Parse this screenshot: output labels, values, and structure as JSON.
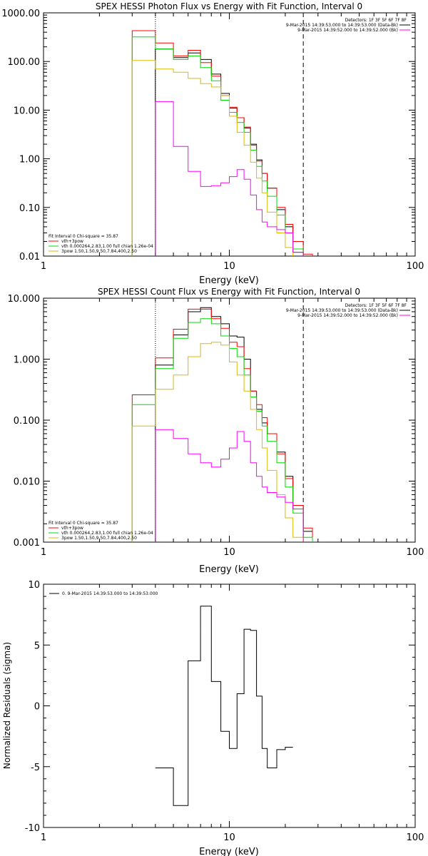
{
  "chart_data": [
    {
      "type": "line",
      "title": "SPEX HESSI Photon Flux vs Energy with Fit Function, Interval 0",
      "xlabel": "Energy (keV)",
      "ylabel": "",
      "xscale": "log",
      "yscale": "log",
      "xlim": [
        1,
        100
      ],
      "ylim": [
        0.01,
        1000
      ],
      "x_ticks": [
        "1",
        "10",
        "100"
      ],
      "y_ticks": [
        "1000.00",
        "100.00",
        "10.00",
        "1.00",
        "0.10",
        "0.01"
      ],
      "vlines": [
        {
          "x": 4.0,
          "style": "dotted"
        },
        {
          "x": 25.0,
          "style": "dashed"
        }
      ],
      "bin_edges": [
        3,
        4,
        5,
        6,
        7,
        8,
        9,
        10,
        11,
        12,
        13,
        14,
        15,
        16,
        18,
        20,
        22,
        25,
        28
      ],
      "series": [
        {
          "name": "",
          "color": "#000000",
          "values": [
            null,
            180,
            120,
            150,
            110,
            55,
            22,
            11,
            7,
            4.3,
            2.0,
            0.95,
            0.5,
            0.25,
            0.09,
            0.04,
            0.012,
            null
          ]
        },
        {
          "name": "",
          "color": "#ff0000",
          "values": [
            430,
            240,
            130,
            170,
            95,
            50,
            20,
            11.5,
            7,
            4.5,
            1.9,
            0.9,
            0.5,
            0.25,
            0.1,
            0.045,
            0.02,
            0.011
          ]
        },
        {
          "name": "",
          "color": "#00dd00",
          "values": [
            320,
            180,
            110,
            130,
            75,
            40,
            16,
            9,
            5.6,
            3.5,
            1.5,
            0.7,
            0.35,
            0.17,
            0.07,
            0.03,
            0.014,
            null
          ]
        },
        {
          "name": "",
          "color": "#ddbb00",
          "values": [
            105,
            70,
            60,
            45,
            35,
            30,
            20,
            7.5,
            3.5,
            1.9,
            0.85,
            0.4,
            0.2,
            0.08,
            0.03,
            0.015,
            null,
            null
          ]
        },
        {
          "name": "",
          "color": "#ff00ff",
          "values": [
            null,
            15,
            1.8,
            0.55,
            0.27,
            0.28,
            0.32,
            0.43,
            0.6,
            0.38,
            0.18,
            0.09,
            0.05,
            0.04,
            0.035,
            0.03,
            0.012,
            null
          ]
        }
      ],
      "legend_top_right": {
        "detectors": "Detectors: 1F 3F 5F 6F 7F 8F",
        "entries": [
          {
            "text": "9-Mar-2015 14:39:53.000 to 14:39:53.000 (Data-Bk)",
            "color": "#000000"
          },
          {
            "text": "9-Mar-2015 14:39:52.000 to 14:39:52.000 (Bk)",
            "color": "#ff00ff"
          }
        ]
      },
      "legend_bottom_left": {
        "header": "Fit Interval 0   Chi-square = 35.87",
        "entries": [
          {
            "text": "vth+3pow",
            "color": "#ff0000"
          },
          {
            "text": "vth 0.000264,2.83,1.00  full chian 1.26e-04",
            "color": "#00dd00"
          },
          {
            "text": "3pow 1.50,1.50,9.50,7.84,400,2.50",
            "color": "#ddbb00"
          }
        ]
      }
    },
    {
      "type": "line",
      "title": "SPEX HESSI Count Flux vs Energy with Fit Function, Interval 0",
      "xlabel": "Energy (keV)",
      "ylabel": "",
      "xscale": "log",
      "yscale": "log",
      "xlim": [
        1,
        100
      ],
      "ylim": [
        0.001,
        10
      ],
      "x_ticks": [
        "1",
        "10",
        "100"
      ],
      "y_ticks": [
        "10.000",
        "1.000",
        "0.100",
        "0.010",
        "0.001"
      ],
      "vlines": [
        {
          "x": 4.0,
          "style": "dotted"
        },
        {
          "x": 25.0,
          "style": "dashed"
        }
      ],
      "bin_edges": [
        3,
        4,
        5,
        6,
        7,
        8,
        9,
        10,
        11,
        12,
        13,
        14,
        15,
        16,
        18,
        20,
        22,
        25,
        28
      ],
      "series": [
        {
          "name": "",
          "color": "#000000",
          "values": [
            null,
            0.8,
            2.5,
            6.0,
            7.0,
            5.0,
            3.8,
            2.4,
            2.3,
            1.0,
            0.3,
            0.15,
            0.09,
            0.06,
            0.03,
            0.012,
            0.0035,
            0.0015
          ]
        },
        {
          "name": "",
          "color": "#ff0000",
          "values": [
            0.26,
            1.05,
            3.1,
            6.6,
            6.6,
            4.6,
            3.2,
            1.9,
            1.6,
            0.7,
            0.3,
            0.18,
            0.11,
            0.06,
            0.028,
            0.011,
            0.004,
            0.0017
          ]
        },
        {
          "name": "",
          "color": "#00dd00",
          "values": [
            0.18,
            0.7,
            2.2,
            4.0,
            4.6,
            3.8,
            2.4,
            1.5,
            1.1,
            0.55,
            0.24,
            0.14,
            0.08,
            0.045,
            0.02,
            0.008,
            0.003,
            0.0012
          ]
        },
        {
          "name": "",
          "color": "#ddbb00",
          "values": [
            0.08,
            0.32,
            0.55,
            1.1,
            1.8,
            1.9,
            1.7,
            0.9,
            0.55,
            0.3,
            0.15,
            0.07,
            0.035,
            0.015,
            0.006,
            0.0025,
            0.0012,
            null
          ]
        },
        {
          "name": "",
          "color": "#ff00ff",
          "values": [
            null,
            0.07,
            0.05,
            0.028,
            0.02,
            0.017,
            0.023,
            0.035,
            0.065,
            0.045,
            0.02,
            0.012,
            0.008,
            0.0065,
            0.0055,
            0.0045,
            0.0035,
            null
          ]
        }
      ],
      "legend_top_right": {
        "detectors": "Detectors: 1F 3F 5F 6F 7F 8F",
        "entries": [
          {
            "text": "9-Mar-2015 14:39:53.000 to 14:39:53.000 (Data-Bk)",
            "color": "#000000"
          },
          {
            "text": "9-Mar-2015 14:39:52.000 to 14:39:52.000 (Bk)",
            "color": "#ff00ff"
          }
        ]
      },
      "legend_bottom_left": {
        "header": "Fit Interval 0   Chi-square = 35.87",
        "entries": [
          {
            "text": "vth+3pow",
            "color": "#ff0000"
          },
          {
            "text": "vth 0.000264,2.83,1.00  full chian 1.26e-04",
            "color": "#00dd00"
          },
          {
            "text": "3pow 1.50,1.50,9.50,7.84,400,2.50",
            "color": "#ddbb00"
          }
        ]
      }
    },
    {
      "type": "line",
      "title": "",
      "xlabel": "Energy (keV)",
      "ylabel": "Normalized Residuals (sigma)",
      "xscale": "log",
      "yscale": "linear",
      "xlim": [
        1,
        100
      ],
      "ylim": [
        -10,
        10
      ],
      "x_ticks": [
        "1",
        "10",
        "100"
      ],
      "y_ticks": [
        "10",
        "5",
        "0",
        "-5",
        "-10"
      ],
      "bin_edges": [
        4,
        5,
        6,
        7,
        8,
        9,
        10,
        11,
        12,
        13,
        14,
        15,
        16,
        18,
        20,
        22,
        25
      ],
      "series": [
        {
          "name": "0. 9-Mar-2015 14:39:53.000 to 14:39:53.000",
          "color": "#000000",
          "values": [
            -5.1,
            -8.2,
            3.7,
            8.2,
            2.0,
            -2.1,
            -3.5,
            1.0,
            6.3,
            6.2,
            0.8,
            -3.5,
            -5.1,
            -3.6,
            -3.4,
            null
          ]
        }
      ]
    }
  ]
}
